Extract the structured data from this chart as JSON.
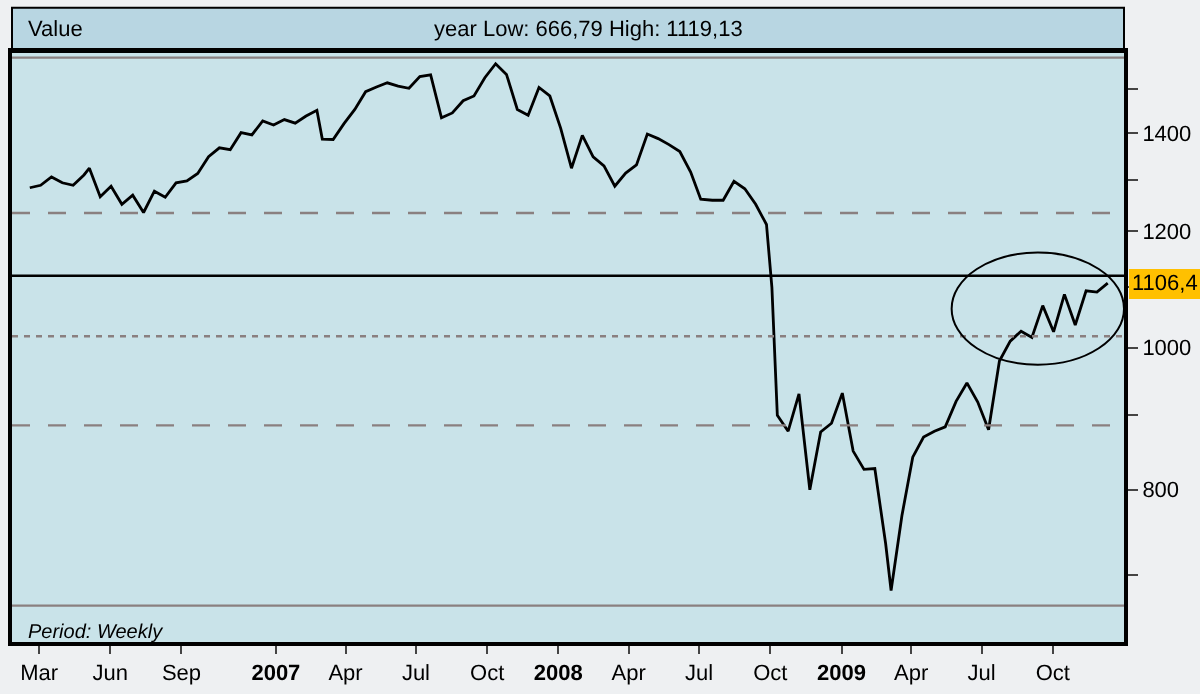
{
  "chart_data": {
    "type": "line",
    "annotations": [
      "Value",
      "year Low: 666,79 High: 1119,13",
      "Period: Weekly",
      {
        "text": "1106,4",
        "x": "2009-12-11",
        "y": 1106.4
      }
    ],
    "x": [
      "2006-02-17",
      "2006-03-03",
      "2006-03-17",
      "2006-03-31",
      "2006-04-14",
      "2006-04-28",
      "2006-05-05",
      "2006-05-19",
      "2006-06-02",
      "2006-06-16",
      "2006-06-30",
      "2006-07-14",
      "2006-07-28",
      "2006-08-11",
      "2006-08-25",
      "2006-09-08",
      "2006-09-22",
      "2006-10-06",
      "2006-10-20",
      "2006-11-03",
      "2006-11-17",
      "2006-12-01",
      "2006-12-15",
      "2006-12-29",
      "2007-01-12",
      "2007-01-26",
      "2007-02-09",
      "2007-02-23",
      "2007-03-02",
      "2007-03-16",
      "2007-03-30",
      "2007-04-13",
      "2007-04-27",
      "2007-05-11",
      "2007-05-25",
      "2007-06-08",
      "2007-06-22",
      "2007-07-06",
      "2007-07-20",
      "2007-08-03",
      "2007-08-17",
      "2007-08-31",
      "2007-09-14",
      "2007-09-28",
      "2007-10-12",
      "2007-10-26",
      "2007-11-09",
      "2007-11-23",
      "2007-12-07",
      "2007-12-21",
      "2008-01-04",
      "2008-01-18",
      "2008-02-01",
      "2008-02-15",
      "2008-02-29",
      "2008-03-14",
      "2008-03-28",
      "2008-04-11",
      "2008-04-25",
      "2008-05-09",
      "2008-05-23",
      "2008-06-06",
      "2008-06-20",
      "2008-07-03",
      "2008-07-18",
      "2008-08-01",
      "2008-08-15",
      "2008-08-29",
      "2008-09-12",
      "2008-09-26",
      "2008-10-03",
      "2008-10-10",
      "2008-10-24",
      "2008-11-07",
      "2008-11-21",
      "2008-12-05",
      "2008-12-19",
      "2009-01-02",
      "2009-01-16",
      "2009-01-30",
      "2009-02-13",
      "2009-02-27",
      "2009-03-06",
      "2009-03-20",
      "2009-04-03",
      "2009-04-17",
      "2009-05-01",
      "2009-05-15",
      "2009-05-29",
      "2009-06-12",
      "2009-06-26",
      "2009-07-10",
      "2009-07-24",
      "2009-08-07",
      "2009-08-21",
      "2009-09-04",
      "2009-09-18",
      "2009-10-02",
      "2009-10-16",
      "2009-10-30",
      "2009-11-13",
      "2009-11-27",
      "2009-12-11"
    ],
    "series": [
      {
        "color": "#000000",
        "values": [
          1285,
          1290,
          1307,
          1295,
          1290,
          1311,
          1325,
          1267,
          1288,
          1252,
          1270,
          1236,
          1278,
          1266,
          1295,
          1299,
          1314,
          1349,
          1368,
          1364,
          1401,
          1396,
          1427,
          1418,
          1430,
          1422,
          1438,
          1451,
          1387,
          1386,
          1421,
          1453,
          1494,
          1505,
          1515,
          1507,
          1502,
          1530,
          1534,
          1434,
          1445,
          1473,
          1484,
          1527,
          1561,
          1535,
          1453,
          1440,
          1504,
          1484,
          1411,
          1325,
          1395,
          1349,
          1330,
          1288,
          1315,
          1332,
          1398,
          1388,
          1375,
          1360,
          1317,
          1262,
          1260,
          1260,
          1298,
          1283,
          1252,
          1213,
          1099,
          899,
          877,
          930,
          800,
          876,
          888,
          931,
          850,
          826,
          827,
          735,
          683,
          768,
          842,
          869,
          877,
          883,
          919,
          946,
          918,
          879,
          979,
          1010,
          1026,
          1016,
          1068,
          1025,
          1087,
          1036,
          1093,
          1091,
          1106.4
        ]
      }
    ],
    "log": true,
    "xlim": [
      "2006-01-25",
      "2010-01-01"
    ],
    "xticks": [
      {
        "value": "2006-03-01",
        "label": "Mar"
      },
      {
        "value": "2006-06-01",
        "label": "Jun"
      },
      {
        "value": "2006-09-01",
        "label": "Sep"
      },
      {
        "value": "2007-01-01",
        "label": "2007"
      },
      {
        "value": "2007-04-01",
        "label": "Apr"
      },
      {
        "value": "2007-07-01",
        "label": "Jul"
      },
      {
        "value": "2007-10-01",
        "label": "Oct"
      },
      {
        "value": "2008-01-01",
        "label": "2008"
      },
      {
        "value": "2008-04-01",
        "label": "Apr"
      },
      {
        "value": "2008-07-01",
        "label": "Jul"
      },
      {
        "value": "2008-10-01",
        "label": "Oct"
      },
      {
        "value": "2009-01-01",
        "label": "2009"
      },
      {
        "value": "2009-04-01",
        "label": "Apr"
      },
      {
        "value": "2009-07-01",
        "label": "Jul"
      },
      {
        "value": "2009-10-01",
        "label": "Oct"
      }
    ],
    "ylim": [
      630,
      1590
    ],
    "yticks": [
      {
        "value": 700,
        "label": null
      },
      800,
      {
        "value": 900,
        "label": null
      },
      1000,
      {
        "value": 1100,
        "label": null
      },
      1200,
      {
        "value": 1300,
        "label": null
      },
      1400,
      {
        "value": 1500,
        "label": null
      }
    ],
    "ref_lines": [
      {
        "axis": "y",
        "value": 1119.13,
        "color": "#000000",
        "line_style": "solid"
      },
      {
        "axis": "y",
        "value": 1576,
        "color": "#8a8080",
        "line_style": "solid"
      },
      {
        "axis": "y",
        "value": 1235,
        "color": "#8a8080",
        "line_style": "dashed"
      },
      {
        "axis": "y",
        "value": 1018,
        "color": "#8a8080",
        "line_style": "dotted"
      },
      {
        "axis": "y",
        "value": 885,
        "color": "#8a8080",
        "line_style": "dashed"
      },
      {
        "axis": "y",
        "value": 667,
        "color": "#8a8080",
        "line_style": "solid"
      }
    ],
    "grid": false
  }
}
